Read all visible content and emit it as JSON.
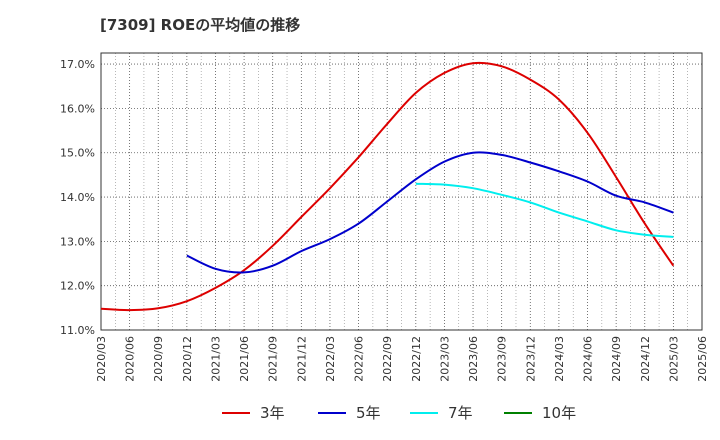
{
  "title": "[7309]  ROEの平均値の推移",
  "chart_data": {
    "type": "line",
    "title": "[7309]  ROEの平均値の推移",
    "xlabel": "",
    "ylabel": "",
    "x": [
      "2020/03",
      "2020/06",
      "2020/09",
      "2020/12",
      "2021/03",
      "2021/06",
      "2021/09",
      "2021/12",
      "2022/03",
      "2022/06",
      "2022/09",
      "2022/12",
      "2023/03",
      "2023/06",
      "2023/09",
      "2023/12",
      "2024/03",
      "2024/06",
      "2024/09",
      "2024/12",
      "2025/03",
      "2025/06"
    ],
    "ylim": [
      11.0,
      17.25
    ],
    "yticks": [
      11.0,
      12.0,
      13.0,
      14.0,
      15.0,
      16.0,
      17.0
    ],
    "ytick_labels": [
      "11.0%",
      "12.0%",
      "13.0%",
      "14.0%",
      "15.0%",
      "16.0%",
      "17.0%"
    ],
    "grid": true,
    "legend_position": "bottom",
    "series": [
      {
        "name": "3年",
        "color": "#dd0000",
        "values": [
          11.48,
          11.45,
          11.49,
          11.65,
          11.95,
          12.35,
          12.9,
          13.55,
          14.2,
          14.9,
          15.65,
          16.35,
          16.8,
          17.02,
          16.95,
          16.65,
          16.2,
          15.45,
          14.45,
          13.4,
          12.45,
          null
        ]
      },
      {
        "name": "5年",
        "color": "#0000cc",
        "values": [
          null,
          null,
          null,
          12.68,
          12.38,
          12.3,
          12.45,
          12.78,
          13.05,
          13.4,
          13.9,
          14.4,
          14.8,
          15.0,
          14.95,
          14.78,
          14.58,
          14.35,
          14.03,
          13.88,
          13.65,
          null
        ]
      },
      {
        "name": "7年",
        "color": "#00eeee",
        "values": [
          null,
          null,
          null,
          null,
          null,
          null,
          null,
          null,
          null,
          null,
          null,
          14.3,
          14.28,
          14.2,
          14.05,
          13.88,
          13.65,
          13.45,
          13.25,
          13.15,
          13.1,
          null
        ]
      },
      {
        "name": "10年",
        "color": "#008000",
        "values": [
          null,
          null,
          null,
          null,
          null,
          null,
          null,
          null,
          null,
          null,
          null,
          null,
          null,
          null,
          null,
          null,
          null,
          null,
          null,
          null,
          null,
          null
        ]
      }
    ]
  }
}
